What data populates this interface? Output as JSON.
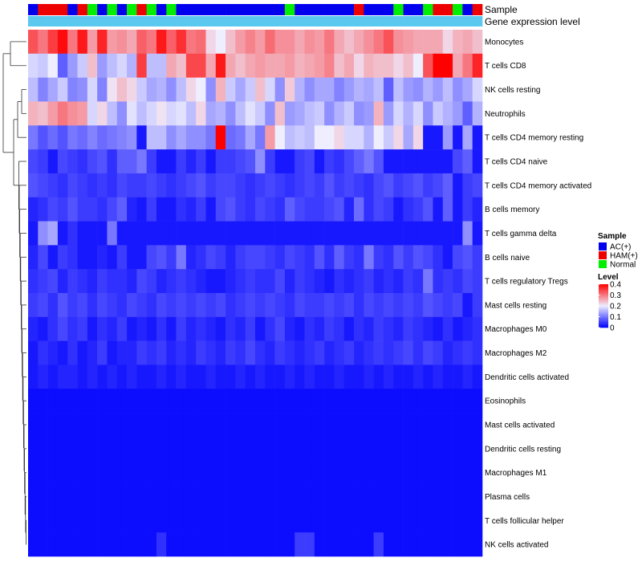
{
  "chart_data": {
    "type": "heatmap",
    "title": "",
    "annotation_labels": {
      "sample": "Sample",
      "gene_expression": "Gene expression level"
    },
    "sample_legend": {
      "title": "Sample",
      "entries": [
        {
          "name": "AC(+)",
          "color": "#0000ee"
        },
        {
          "name": "HAM(+)",
          "color": "#ee0000"
        },
        {
          "name": "Normal",
          "color": "#00ee00"
        }
      ]
    },
    "level_legend": {
      "title": "Level",
      "ticks": [
        "0.4",
        "0.3",
        "0.2",
        "0.1",
        "0"
      ],
      "tick_values": [
        0.4,
        0.3,
        0.2,
        0.1,
        0
      ],
      "color_low": "#0000ff",
      "color_mid": "#eeeeff",
      "color_high": "#ff0000",
      "mid_value": 0.2
    },
    "value_range": [
      0,
      0.4
    ],
    "sample_groups": [
      "AC(+)",
      "HAM(+)",
      "HAM(+)",
      "HAM(+)",
      "AC(+)",
      "HAM(+)",
      "Normal",
      "AC(+)",
      "Normal",
      "AC(+)",
      "Normal",
      "HAM(+)",
      "Normal",
      "AC(+)",
      "Normal",
      "AC(+)",
      "AC(+)",
      "AC(+)",
      "AC(+)",
      "AC(+)",
      "AC(+)",
      "AC(+)",
      "AC(+)",
      "AC(+)",
      "AC(+)",
      "AC(+)",
      "Normal",
      "AC(+)",
      "AC(+)",
      "AC(+)",
      "AC(+)",
      "AC(+)",
      "AC(+)",
      "HAM(+)",
      "AC(+)",
      "AC(+)",
      "AC(+)",
      "Normal",
      "AC(+)",
      "AC(+)",
      "Normal",
      "HAM(+)",
      "HAM(+)",
      "Normal",
      "AC(+)",
      "HAM(+)"
    ],
    "gene_expression_color": "#5bc8ef",
    "rows": [
      {
        "label": "Monocytes",
        "values": [
          0.33,
          0.3,
          0.35,
          0.39,
          0.3,
          0.38,
          0.27,
          0.37,
          0.27,
          0.28,
          0.26,
          0.32,
          0.3,
          0.38,
          0.32,
          0.36,
          0.3,
          0.31,
          0.22,
          0.2,
          0.24,
          0.27,
          0.29,
          0.27,
          0.31,
          0.28,
          0.28,
          0.26,
          0.28,
          0.27,
          0.3,
          0.26,
          0.24,
          0.26,
          0.28,
          0.3,
          0.33,
          0.28,
          0.27,
          0.26,
          0.26,
          0.26,
          0.22,
          0.25,
          0.26,
          0.24
        ]
      },
      {
        "label": "T cells CD8",
        "values": [
          0.18,
          0.17,
          0.2,
          0.08,
          0.13,
          0.17,
          0.24,
          0.13,
          0.16,
          0.18,
          0.15,
          0.35,
          0.16,
          0.16,
          0.26,
          0.24,
          0.34,
          0.34,
          0.26,
          0.38,
          0.26,
          0.24,
          0.26,
          0.27,
          0.26,
          0.26,
          0.27,
          0.25,
          0.26,
          0.27,
          0.29,
          0.24,
          0.26,
          0.22,
          0.25,
          0.24,
          0.24,
          0.22,
          0.24,
          0.2,
          0.33,
          0.4,
          0.4,
          0.26,
          0.3,
          0.37
        ]
      },
      {
        "label": "NK cells resting",
        "values": [
          0.16,
          0.11,
          0.14,
          0.17,
          0.11,
          0.12,
          0.18,
          0.11,
          0.21,
          0.24,
          0.22,
          0.17,
          0.14,
          0.15,
          0.12,
          0.16,
          0.22,
          0.2,
          0.12,
          0.25,
          0.17,
          0.14,
          0.17,
          0.24,
          0.18,
          0.12,
          0.23,
          0.15,
          0.12,
          0.14,
          0.14,
          0.11,
          0.13,
          0.15,
          0.14,
          0.16,
          0.08,
          0.16,
          0.13,
          0.12,
          0.15,
          0.13,
          0.16,
          0.12,
          0.14,
          0.18
        ]
      },
      {
        "label": "Neutrophils",
        "values": [
          0.25,
          0.24,
          0.27,
          0.3,
          0.28,
          0.27,
          0.18,
          0.22,
          0.16,
          0.12,
          0.19,
          0.16,
          0.18,
          0.21,
          0.18,
          0.19,
          0.16,
          0.22,
          0.14,
          0.15,
          0.12,
          0.16,
          0.19,
          0.17,
          0.12,
          0.24,
          0.13,
          0.14,
          0.16,
          0.17,
          0.12,
          0.15,
          0.17,
          0.12,
          0.13,
          0.25,
          0.13,
          0.18,
          0.15,
          0.18,
          0.12,
          0.17,
          0.15,
          0.13,
          0.08,
          0.15
        ]
      },
      {
        "label": "T cells CD4 memory resting",
        "values": [
          0.1,
          0.07,
          0.09,
          0.07,
          0.1,
          0.09,
          0.11,
          0.09,
          0.1,
          0.11,
          0.12,
          0.02,
          0.16,
          0.16,
          0.12,
          0.14,
          0.12,
          0.12,
          0.1,
          0.4,
          0.09,
          0.1,
          0.14,
          0.1,
          0.27,
          0.2,
          0.16,
          0.17,
          0.16,
          0.2,
          0.2,
          0.22,
          0.18,
          0.18,
          0.15,
          0.2,
          0.17,
          0.22,
          0.14,
          0.22,
          0.02,
          0.02,
          0.13,
          0.02,
          0.14,
          0.02
        ]
      },
      {
        "label": "T cells CD4 naive",
        "values": [
          0.06,
          0.05,
          0.02,
          0.06,
          0.05,
          0.04,
          0.06,
          0.07,
          0.04,
          0.08,
          0.08,
          0.1,
          0.05,
          0.02,
          0.02,
          0.05,
          0.03,
          0.05,
          0.02,
          0.05,
          0.05,
          0.06,
          0.07,
          0.12,
          0.05,
          0.02,
          0.02,
          0.05,
          0.06,
          0.02,
          0.05,
          0.04,
          0.06,
          0.08,
          0.1,
          0.07,
          0.02,
          0.02,
          0.02,
          0.02,
          0.02,
          0.02,
          0.02,
          0.06,
          0.08,
          0.02
        ]
      },
      {
        "label": "T cells CD4 memory activated",
        "values": [
          0.07,
          0.06,
          0.05,
          0.04,
          0.06,
          0.05,
          0.04,
          0.05,
          0.04,
          0.06,
          0.05,
          0.05,
          0.06,
          0.05,
          0.04,
          0.05,
          0.06,
          0.07,
          0.05,
          0.06,
          0.06,
          0.05,
          0.04,
          0.05,
          0.06,
          0.05,
          0.04,
          0.05,
          0.06,
          0.05,
          0.07,
          0.05,
          0.06,
          0.05,
          0.04,
          0.06,
          0.07,
          0.05,
          0.06,
          0.07,
          0.05,
          0.06,
          0.08,
          0.02,
          0.05,
          0.06
        ]
      },
      {
        "label": "B cells memory",
        "values": [
          0.03,
          0.04,
          0.06,
          0.05,
          0.07,
          0.05,
          0.05,
          0.04,
          0.06,
          0.08,
          0.03,
          0.02,
          0.05,
          0.02,
          0.02,
          0.04,
          0.03,
          0.05,
          0.02,
          0.06,
          0.07,
          0.05,
          0.04,
          0.06,
          0.05,
          0.04,
          0.08,
          0.06,
          0.05,
          0.05,
          0.06,
          0.07,
          0.03,
          0.09,
          0.04,
          0.06,
          0.05,
          0.02,
          0.04,
          0.05,
          0.07,
          0.02,
          0.08,
          0.02,
          0.05,
          0.03
        ]
      },
      {
        "label": "T cells gamma delta",
        "values": [
          0.02,
          0.12,
          0.14,
          0.02,
          0.04,
          0.02,
          0.02,
          0.02,
          0.1,
          0.02,
          0.02,
          0.02,
          0.02,
          0.02,
          0.02,
          0.02,
          0.02,
          0.02,
          0.02,
          0.02,
          0.02,
          0.02,
          0.02,
          0.02,
          0.02,
          0.02,
          0.02,
          0.02,
          0.02,
          0.02,
          0.02,
          0.02,
          0.02,
          0.02,
          0.02,
          0.02,
          0.02,
          0.02,
          0.02,
          0.02,
          0.02,
          0.02,
          0.02,
          0.02,
          0.12,
          0.02
        ]
      },
      {
        "label": "B cells naive",
        "values": [
          0.03,
          0.06,
          0.02,
          0.05,
          0.04,
          0.02,
          0.02,
          0.03,
          0.02,
          0.05,
          0.02,
          0.02,
          0.06,
          0.07,
          0.05,
          0.1,
          0.03,
          0.04,
          0.06,
          0.05,
          0.03,
          0.05,
          0.06,
          0.06,
          0.05,
          0.04,
          0.06,
          0.05,
          0.04,
          0.07,
          0.04,
          0.08,
          0.05,
          0.04,
          0.1,
          0.05,
          0.04,
          0.07,
          0.05,
          0.07,
          0.06,
          0.04,
          0.02,
          0.06,
          0.07,
          0.05
        ]
      },
      {
        "label": "T cells regulatory  Tregs",
        "values": [
          0.04,
          0.05,
          0.06,
          0.03,
          0.05,
          0.04,
          0.03,
          0.05,
          0.04,
          0.04,
          0.03,
          0.06,
          0.05,
          0.03,
          0.04,
          0.05,
          0.04,
          0.03,
          0.02,
          0.02,
          0.03,
          0.04,
          0.05,
          0.04,
          0.04,
          0.06,
          0.03,
          0.05,
          0.04,
          0.03,
          0.02,
          0.04,
          0.03,
          0.04,
          0.05,
          0.03,
          0.04,
          0.03,
          0.05,
          0.04,
          0.1,
          0.04,
          0.05,
          0.04,
          0.06,
          0.05
        ]
      },
      {
        "label": "Mast cells resting",
        "values": [
          0.05,
          0.06,
          0.04,
          0.07,
          0.05,
          0.06,
          0.04,
          0.06,
          0.05,
          0.04,
          0.06,
          0.05,
          0.04,
          0.06,
          0.05,
          0.06,
          0.05,
          0.06,
          0.05,
          0.06,
          0.04,
          0.05,
          0.06,
          0.05,
          0.06,
          0.05,
          0.04,
          0.06,
          0.05,
          0.05,
          0.06,
          0.05,
          0.06,
          0.04,
          0.06,
          0.05,
          0.06,
          0.05,
          0.06,
          0.05,
          0.07,
          0.06,
          0.05,
          0.06,
          0.02,
          0.05
        ]
      },
      {
        "label": "Macrophages M0",
        "values": [
          0.03,
          0.02,
          0.04,
          0.06,
          0.04,
          0.05,
          0.02,
          0.04,
          0.03,
          0.05,
          0.02,
          0.03,
          0.02,
          0.04,
          0.02,
          0.05,
          0.03,
          0.04,
          0.03,
          0.02,
          0.04,
          0.03,
          0.05,
          0.02,
          0.04,
          0.06,
          0.03,
          0.02,
          0.04,
          0.03,
          0.05,
          0.04,
          0.02,
          0.04,
          0.03,
          0.05,
          0.04,
          0.03,
          0.05,
          0.04,
          0.03,
          0.02,
          0.04,
          0.02,
          0.03,
          0.04
        ]
      },
      {
        "label": "Macrophages M2",
        "values": [
          0.02,
          0.04,
          0.03,
          0.02,
          0.04,
          0.02,
          0.03,
          0.05,
          0.02,
          0.03,
          0.03,
          0.05,
          0.04,
          0.05,
          0.03,
          0.04,
          0.03,
          0.05,
          0.04,
          0.03,
          0.05,
          0.04,
          0.06,
          0.04,
          0.03,
          0.05,
          0.04,
          0.03,
          0.04,
          0.05,
          0.03,
          0.04,
          0.05,
          0.03,
          0.04,
          0.05,
          0.04,
          0.05,
          0.06,
          0.04,
          0.06,
          0.05,
          0.03,
          0.04,
          0.05,
          0.04
        ]
      },
      {
        "label": "Dendritic cells activated",
        "values": [
          0.02,
          0.03,
          0.02,
          0.03,
          0.03,
          0.02,
          0.03,
          0.02,
          0.03,
          0.02,
          0.03,
          0.02,
          0.02,
          0.03,
          0.02,
          0.03,
          0.02,
          0.02,
          0.03,
          0.02,
          0.02,
          0.03,
          0.02,
          0.03,
          0.02,
          0.02,
          0.03,
          0.02,
          0.03,
          0.02,
          0.02,
          0.03,
          0.02,
          0.02,
          0.03,
          0.02,
          0.03,
          0.02,
          0.02,
          0.03,
          0.02,
          0.03,
          0.02,
          0.02,
          0.03,
          0.02
        ]
      },
      {
        "label": "Eosinophils",
        "values": [
          0.01,
          0.01,
          0.01,
          0.01,
          0.01,
          0.01,
          0.01,
          0.01,
          0.01,
          0.01,
          0.01,
          0.01,
          0.01,
          0.01,
          0.01,
          0.01,
          0.01,
          0.01,
          0.01,
          0.01,
          0.01,
          0.01,
          0.01,
          0.01,
          0.01,
          0.01,
          0.01,
          0.01,
          0.01,
          0.01,
          0.01,
          0.01,
          0.01,
          0.01,
          0.01,
          0.01,
          0.01,
          0.01,
          0.01,
          0.01,
          0.01,
          0.01,
          0.01,
          0.01,
          0.01,
          0.01
        ]
      },
      {
        "label": "Mast cells activated",
        "values": [
          0.01,
          0.01,
          0.01,
          0.01,
          0.01,
          0.01,
          0.01,
          0.01,
          0.01,
          0.01,
          0.01,
          0.01,
          0.01,
          0.01,
          0.01,
          0.01,
          0.01,
          0.01,
          0.01,
          0.01,
          0.01,
          0.01,
          0.01,
          0.01,
          0.01,
          0.01,
          0.01,
          0.01,
          0.01,
          0.01,
          0.01,
          0.01,
          0.01,
          0.01,
          0.01,
          0.01,
          0.01,
          0.01,
          0.01,
          0.01,
          0.01,
          0.01,
          0.01,
          0.01,
          0.01,
          0.01
        ]
      },
      {
        "label": "Dendritic cells resting",
        "values": [
          0.01,
          0.01,
          0.01,
          0.01,
          0.01,
          0.01,
          0.01,
          0.01,
          0.01,
          0.01,
          0.01,
          0.01,
          0.01,
          0.01,
          0.01,
          0.01,
          0.01,
          0.01,
          0.01,
          0.01,
          0.01,
          0.01,
          0.01,
          0.01,
          0.01,
          0.01,
          0.01,
          0.01,
          0.01,
          0.01,
          0.01,
          0.01,
          0.01,
          0.01,
          0.01,
          0.01,
          0.01,
          0.01,
          0.01,
          0.01,
          0.01,
          0.01,
          0.01,
          0.01,
          0.01,
          0.01
        ]
      },
      {
        "label": "Macrophages M1",
        "values": [
          0.01,
          0.01,
          0.01,
          0.01,
          0.01,
          0.01,
          0.01,
          0.01,
          0.01,
          0.01,
          0.01,
          0.01,
          0.01,
          0.01,
          0.01,
          0.01,
          0.01,
          0.01,
          0.01,
          0.01,
          0.01,
          0.01,
          0.01,
          0.01,
          0.01,
          0.01,
          0.01,
          0.01,
          0.01,
          0.01,
          0.01,
          0.01,
          0.01,
          0.01,
          0.01,
          0.01,
          0.01,
          0.01,
          0.01,
          0.01,
          0.01,
          0.01,
          0.01,
          0.01,
          0.01,
          0.01
        ]
      },
      {
        "label": "Plasma cells",
        "values": [
          0.01,
          0.01,
          0.01,
          0.01,
          0.01,
          0.01,
          0.01,
          0.01,
          0.01,
          0.01,
          0.01,
          0.01,
          0.01,
          0.01,
          0.01,
          0.01,
          0.01,
          0.01,
          0.01,
          0.01,
          0.01,
          0.01,
          0.01,
          0.01,
          0.01,
          0.01,
          0.01,
          0.01,
          0.01,
          0.01,
          0.01,
          0.01,
          0.01,
          0.01,
          0.01,
          0.01,
          0.01,
          0.01,
          0.01,
          0.01,
          0.01,
          0.01,
          0.01,
          0.01,
          0.01,
          0.01
        ]
      },
      {
        "label": "T cells follicular helper",
        "values": [
          0.01,
          0.01,
          0.01,
          0.01,
          0.01,
          0.01,
          0.01,
          0.01,
          0.01,
          0.01,
          0.01,
          0.01,
          0.01,
          0.01,
          0.01,
          0.01,
          0.01,
          0.01,
          0.01,
          0.01,
          0.01,
          0.01,
          0.01,
          0.01,
          0.01,
          0.01,
          0.01,
          0.01,
          0.01,
          0.01,
          0.01,
          0.01,
          0.01,
          0.01,
          0.01,
          0.01,
          0.01,
          0.01,
          0.01,
          0.01,
          0.01,
          0.01,
          0.01,
          0.01,
          0.01,
          0.01
        ]
      },
      {
        "label": "NK cells activated",
        "values": [
          0.01,
          0.01,
          0.01,
          0.01,
          0.01,
          0.01,
          0.01,
          0.01,
          0.01,
          0.01,
          0.01,
          0.01,
          0.01,
          0.04,
          0.01,
          0.01,
          0.01,
          0.01,
          0.01,
          0.01,
          0.01,
          0.01,
          0.01,
          0.01,
          0.01,
          0.01,
          0.01,
          0.05,
          0.05,
          0.01,
          0.01,
          0.01,
          0.01,
          0.01,
          0.01,
          0.05,
          0.01,
          0.01,
          0.01,
          0.01,
          0.01,
          0.01,
          0.01,
          0.01,
          0.01,
          0.01
        ]
      }
    ]
  }
}
